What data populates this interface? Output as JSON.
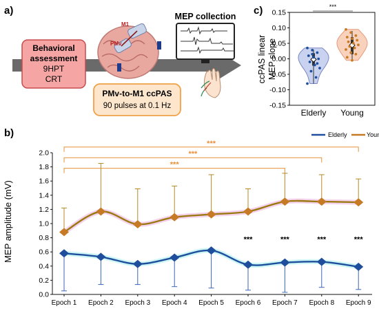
{
  "panels": {
    "a": {
      "label": "a)",
      "behavioral": {
        "title": "Behavioral assessment",
        "line1": "9HPT",
        "line2": "CRT"
      },
      "mep_title": "MEP collection",
      "stim": {
        "title": "PMv-to-M1 ccPAS",
        "subtitle": "90 pulses at 0.1 Hz"
      },
      "brain_labels": {
        "m1": "M1",
        "pmv": "PMv"
      }
    },
    "b": {
      "label": "b)"
    },
    "c": {
      "label": "c)"
    }
  },
  "colors": {
    "elderly": "#1f4e9c",
    "young": "#c77a25",
    "young_line": "#9a7a10",
    "bracket": "#e8913a",
    "violin_elderly": "#c9d3f0",
    "violin_young": "#f8d2bd"
  },
  "chart_data": [
    {
      "type": "violin",
      "ylabel": "ccPAS linear MEP slope",
      "ylim": [
        -0.15,
        0.15
      ],
      "yticks": [
        "0.15",
        "0.10",
        "0.05",
        "0.00",
        "-0.05",
        "-0.10",
        "-0.15"
      ],
      "ytick_values": [
        0.15,
        0.1,
        0.05,
        0.0,
        -0.05,
        -0.1,
        -0.15
      ],
      "categories": [
        "Elderly",
        "Young"
      ],
      "significance": "***",
      "groups": [
        {
          "name": "Elderly",
          "median": -0.002,
          "q1": -0.022,
          "q3": 0.018,
          "whisker_low": -0.08,
          "whisker_high": 0.03,
          "points": [
            0.035,
            0.028,
            0.02,
            0.01,
            0.005,
            0.0,
            -0.01,
            -0.02,
            -0.03,
            -0.04,
            -0.06,
            -0.08,
            0.015,
            -0.015
          ]
        },
        {
          "name": "Young",
          "median": 0.044,
          "q1": 0.015,
          "q3": 0.07,
          "whisker_low": -0.005,
          "whisker_high": 0.09,
          "points": [
            0.095,
            0.085,
            0.075,
            0.07,
            0.065,
            0.06,
            0.055,
            0.05,
            0.045,
            0.04,
            0.035,
            0.03,
            0.02,
            0.015,
            0.005,
            -0.005
          ]
        }
      ]
    },
    {
      "type": "line",
      "ylabel": "MEP amplitude (mV)",
      "ylim": [
        0,
        2.0
      ],
      "yticks": [
        "0.0",
        "0.2",
        "0.4",
        "0.6",
        "0.8",
        "1.0",
        "1.2",
        "1.4",
        "1.6",
        "1.8",
        "2.0"
      ],
      "ytick_values": [
        0,
        0.2,
        0.4,
        0.6,
        0.8,
        1.0,
        1.2,
        1.4,
        1.6,
        1.8,
        2.0
      ],
      "categories": [
        "Epoch 1",
        "Epoch 2",
        "Epoch 3",
        "Epoch 4",
        "Epoch 5",
        "Epoch 6",
        "Epoch 7",
        "Epoch 8",
        "Epoch 9"
      ],
      "legend": "top-right",
      "series": [
        {
          "name": "Elderly",
          "values": [
            0.58,
            0.53,
            0.43,
            0.52,
            0.62,
            0.42,
            0.45,
            0.46,
            0.39
          ],
          "err_low": [
            0.05,
            0.14,
            0.14,
            0.11,
            0.09,
            0.06,
            0.03,
            0.1,
            0.07
          ]
        },
        {
          "name": "Young",
          "values": [
            0.88,
            1.17,
            0.99,
            1.09,
            1.13,
            1.17,
            1.31,
            1.31,
            1.3
          ],
          "err_high": [
            1.22,
            1.85,
            1.49,
            1.53,
            1.69,
            1.49,
            1.71,
            1.69,
            1.63
          ]
        }
      ],
      "epoch_significance": {
        "label": "***",
        "epochs": [
          "Epoch 6",
          "Epoch 7",
          "Epoch 8",
          "Epoch 9"
        ]
      },
      "brackets": [
        {
          "from": "Epoch 1",
          "to": "Epoch 9",
          "label": "***"
        },
        {
          "from": "Epoch 1",
          "to": "Epoch 8",
          "label": "***"
        },
        {
          "from": "Epoch 1",
          "to": "Epoch 7",
          "label": "***"
        }
      ]
    }
  ]
}
